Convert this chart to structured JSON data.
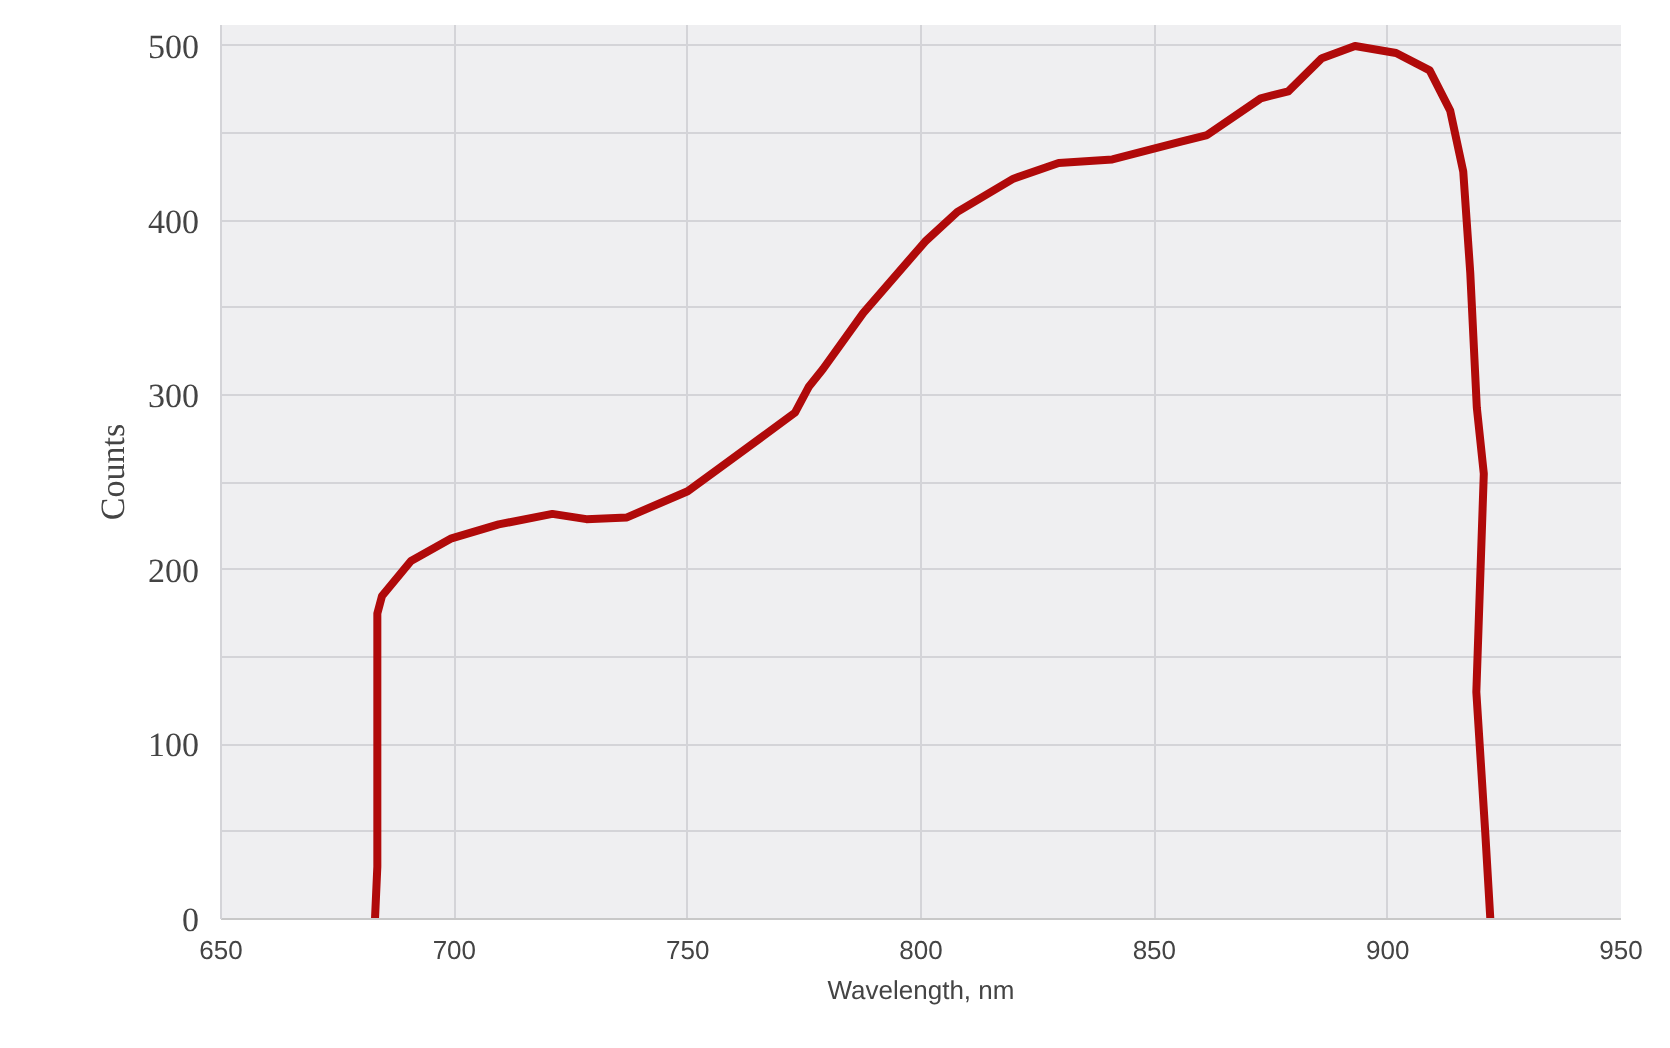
{
  "chart_data": {
    "type": "line",
    "xlabel": "Wavelength, nm",
    "ylabel": "Counts",
    "xlim": [
      650,
      950
    ],
    "ylim": [
      0,
      512
    ],
    "xticks": [
      650,
      700,
      750,
      800,
      850,
      900,
      950
    ],
    "yticks": [
      0,
      {
        "value": 50,
        "label": null
      },
      100,
      {
        "value": 150,
        "label": null
      },
      200,
      {
        "value": 250,
        "label": null
      },
      300,
      {
        "value": 350,
        "label": null
      },
      400,
      {
        "value": 450,
        "label": null
      },
      500
    ],
    "grid": true,
    "marker": "none",
    "line_style": "solid",
    "series": [
      {
        "color": "#b00a0a",
        "x": [
          683,
          683.5,
          683.5,
          684.5,
          690.7,
          699.4,
          709.5,
          721,
          728.3,
          737,
          750,
          757.2,
          765.9,
          773,
          776,
          779,
          787.6,
          800.9,
          807.8,
          819.8,
          829.5,
          841,
          855.5,
          861.3,
          872.8,
          878.7,
          885.9,
          893,
          901.8,
          909,
          913.4,
          916.2,
          917.7,
          919.1,
          920.6,
          919,
          920.9,
          922
        ],
        "values": [
          0,
          30,
          175,
          185,
          205,
          218,
          226,
          232,
          229,
          230,
          245,
          259,
          276,
          290,
          305,
          315,
          347,
          388,
          405,
          424,
          433,
          435,
          445,
          449,
          470,
          474,
          493,
          500,
          496,
          486,
          463,
          428,
          370,
          293,
          255,
          130,
          50,
          0
        ]
      }
    ]
  }
}
